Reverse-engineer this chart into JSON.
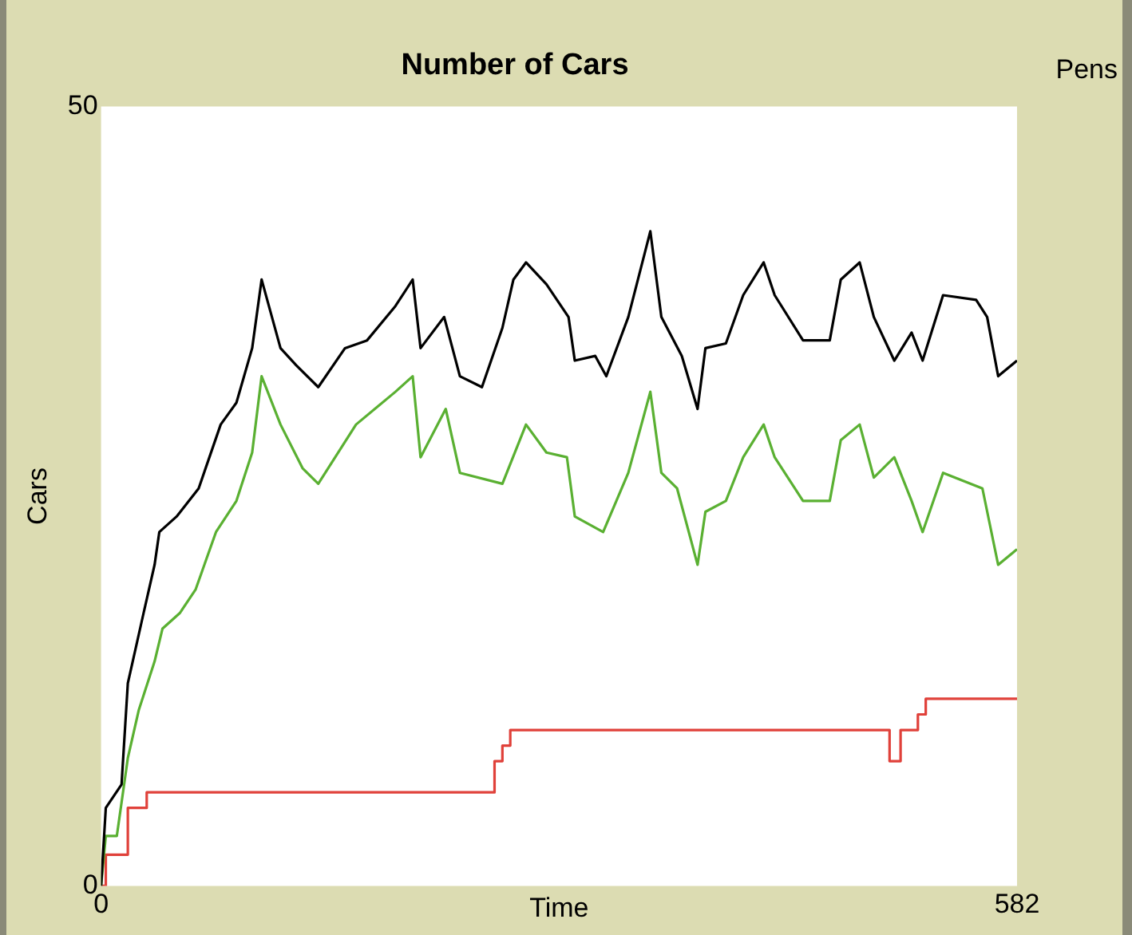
{
  "chart_data": {
    "type": "line",
    "title": "Number of Cars",
    "xlabel": "Time",
    "ylabel": "Cars",
    "annotations": [
      "Pens"
    ],
    "xlim": [
      0,
      582
    ],
    "xticks": [
      0,
      582
    ],
    "ylim": [
      0,
      50
    ],
    "yticks": [
      0,
      50
    ],
    "grid": false,
    "legend": false,
    "marker": "none",
    "series": [
      {
        "color": "#000000",
        "x": [
          0,
          3,
          13,
          17,
          27,
          34,
          37,
          48,
          62,
          76,
          86,
          96,
          102,
          114,
          124,
          138,
          155,
          169,
          187,
          198,
          203,
          218,
          228,
          242,
          255,
          262,
          270,
          283,
          297,
          301,
          314,
          321,
          335,
          349,
          356,
          369,
          379,
          384,
          397,
          408,
          421,
          428,
          446,
          463,
          470,
          482,
          491,
          504,
          515,
          522,
          535,
          556,
          563,
          570,
          582
        ],
        "values": [
          0,
          5,
          6.5,
          13,
          17.5,
          20.6,
          22.7,
          23.7,
          25.5,
          29.6,
          31,
          34.5,
          38.9,
          34.5,
          33.4,
          32,
          34.5,
          35,
          37.2,
          38.9,
          34.5,
          36.5,
          32.7,
          32,
          35.8,
          38.9,
          40,
          38.6,
          36.5,
          33.7,
          34,
          32.7,
          36.5,
          42,
          36.5,
          34,
          30.6,
          34.5,
          34.8,
          37.9,
          40,
          37.9,
          35,
          35,
          38.9,
          40,
          36.5,
          33.7,
          35.5,
          33.7,
          37.9,
          37.6,
          36.5,
          32.7,
          33.7
        ]
      },
      {
        "color": "#5ab032",
        "x": [
          0,
          3,
          10,
          17,
          24,
          34,
          39,
          50,
          60,
          73,
          86,
          96,
          102,
          114,
          128,
          138,
          162,
          187,
          198,
          203,
          219,
          228,
          255,
          270,
          283,
          296,
          301,
          319,
          335,
          349,
          356,
          366,
          379,
          384,
          397,
          408,
          421,
          428,
          446,
          463,
          470,
          482,
          491,
          504,
          515,
          522,
          535,
          560,
          570,
          582
        ],
        "values": [
          0,
          3.2,
          3.2,
          8.2,
          11.3,
          14.4,
          16.5,
          17.5,
          19,
          22.7,
          24.7,
          27.8,
          32.7,
          29.6,
          26.8,
          25.8,
          29.6,
          31.7,
          32.7,
          27.5,
          30.6,
          26.5,
          25.8,
          29.6,
          27.8,
          27.5,
          23.7,
          22.7,
          26.5,
          31.7,
          26.5,
          25.5,
          20.6,
          24,
          24.7,
          27.5,
          29.6,
          27.5,
          24.7,
          24.7,
          28.6,
          29.6,
          26.2,
          27.5,
          24.7,
          22.7,
          26.5,
          25.5,
          20.6,
          21.6
        ]
      },
      {
        "type": "step",
        "color": "#e0413a",
        "x": [
          0,
          3,
          17,
          29,
          250,
          255,
          260,
          501,
          508,
          519,
          524,
          582
        ],
        "values": [
          0,
          2,
          5,
          6,
          8,
          9,
          10,
          8,
          10,
          11,
          12,
          12
        ]
      }
    ]
  }
}
